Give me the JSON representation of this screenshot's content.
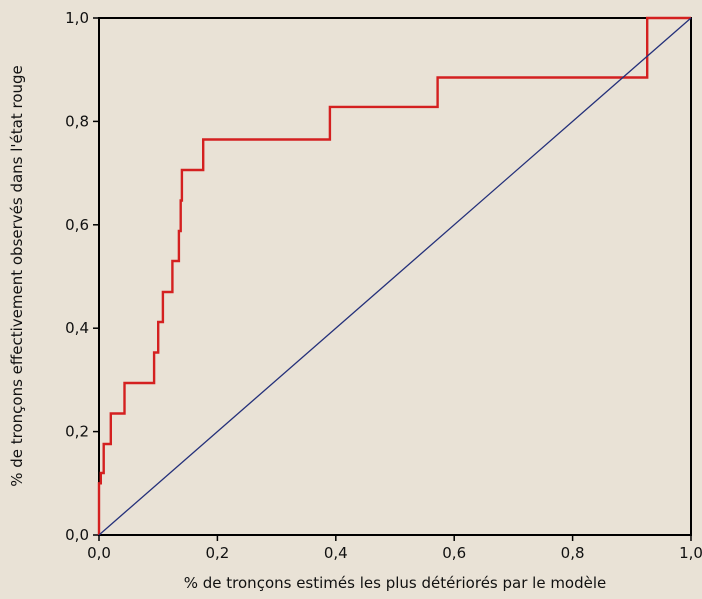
{
  "chart_data": {
    "type": "line",
    "title": "",
    "xlabel": "% de tronçons estimés les plus détériorés par le modèle",
    "ylabel": "% de tronçons effectivement observés dans l'état rouge",
    "xlim": [
      0,
      1
    ],
    "ylim": [
      0,
      1
    ],
    "xticks": [
      "0,0",
      "0,2",
      "0,4",
      "0,6",
      "0,8",
      "1,0"
    ],
    "yticks": [
      "0,0",
      "0,2",
      "0,4",
      "0,6",
      "0,8",
      "1,0"
    ],
    "grid": false,
    "series": [
      {
        "style": "step",
        "color": "#d42020",
        "points": [
          [
            0.0,
            0.0
          ],
          [
            0.0,
            0.1
          ],
          [
            0.003,
            0.1
          ],
          [
            0.003,
            0.12
          ],
          [
            0.008,
            0.12
          ],
          [
            0.008,
            0.176
          ],
          [
            0.02,
            0.176
          ],
          [
            0.02,
            0.235
          ],
          [
            0.043,
            0.235
          ],
          [
            0.043,
            0.294
          ],
          [
            0.093,
            0.294
          ],
          [
            0.093,
            0.353
          ],
          [
            0.1,
            0.353
          ],
          [
            0.1,
            0.412
          ],
          [
            0.108,
            0.412
          ],
          [
            0.108,
            0.47
          ],
          [
            0.124,
            0.47
          ],
          [
            0.124,
            0.53
          ],
          [
            0.135,
            0.53
          ],
          [
            0.135,
            0.588
          ],
          [
            0.138,
            0.588
          ],
          [
            0.138,
            0.647
          ],
          [
            0.14,
            0.647
          ],
          [
            0.14,
            0.706
          ],
          [
            0.176,
            0.706
          ],
          [
            0.176,
            0.765
          ],
          [
            0.39,
            0.765
          ],
          [
            0.39,
            0.828
          ],
          [
            0.572,
            0.828
          ],
          [
            0.572,
            0.885
          ],
          [
            0.926,
            0.885
          ],
          [
            0.926,
            1.0
          ],
          [
            1.0,
            1.0
          ]
        ]
      },
      {
        "style": "line",
        "color": "#24307a",
        "points": [
          [
            0.0,
            0.0
          ],
          [
            1.0,
            1.0
          ]
        ]
      }
    ]
  },
  "colors": {
    "background": "#e9e2d6",
    "axis": "#000000"
  }
}
